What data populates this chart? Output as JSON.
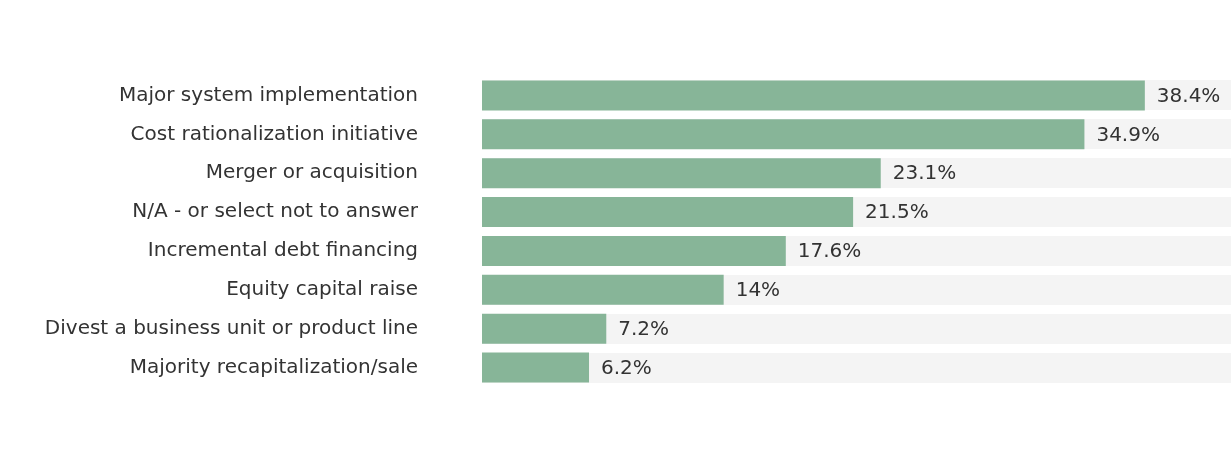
{
  "chart_data": {
    "type": "bar",
    "orientation": "horizontal",
    "categories": [
      "Major system implementation",
      "Cost rationalization initiative",
      "Merger or acquisition",
      "N/A - or select not to answer",
      "Incremental debt financing",
      "Equity capital raise",
      "Divest a business unit or product line",
      "Majority recapitalization/sale"
    ],
    "values": [
      38.4,
      34.9,
      23.1,
      21.5,
      17.6,
      14,
      7.2,
      6.2
    ],
    "value_labels": [
      "38.4%",
      "34.9%",
      "23.1%",
      "21.5%",
      "17.6%",
      "14%",
      "7.2%",
      "6.2%"
    ],
    "color": "#87b598",
    "grid": false,
    "legend": false,
    "tick_labels": "y"
  }
}
